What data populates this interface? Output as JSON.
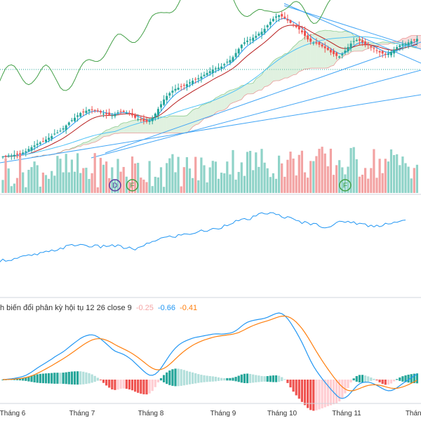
{
  "macd_legend": {
    "label": "h biến đổi phân kỳ hội tụ 12 26 close 9",
    "hist": "-0.25",
    "macd": "-0.66",
    "signal": "-0.41"
  },
  "colors": {
    "up": "#26a69a",
    "down": "#ef5350",
    "up_light": "#8fd3c8",
    "down_light": "#f3a3a3",
    "ema_blue": "#2196f3",
    "ema_red": "#b71c1c",
    "lagging_green": "#43a047",
    "cloud_green": "#a5d6a7",
    "cloud_red": "#ef9a9a",
    "macd_line": "#2196f3",
    "signal_line": "#ff7f0e",
    "indicator_line": "#2196f3",
    "hist_up": "#26a69a",
    "hist_down": "#ef5350",
    "hist_up_light": "#b2dfdb",
    "hist_down_light": "#ffcdd2",
    "marker_purple": "#5c3fa0",
    "marker_green": "#43a047"
  },
  "x_axis": {
    "labels": [
      "Tháng 6",
      "Tháng 7",
      "Tháng 8",
      "Tháng 9",
      "Tháng 10",
      "Tháng 11",
      "Tháng"
    ]
  },
  "markers": [
    {
      "letter": "D",
      "index": 39,
      "color_key": "marker_purple"
    },
    {
      "letter": "F",
      "index": 45,
      "color_key": "marker_green"
    },
    {
      "letter": "F",
      "index": 119,
      "color_key": "marker_green"
    }
  ],
  "chart_data": {
    "type": "candlestick",
    "n_bars": 145,
    "close": [
      20.0,
      20.1,
      20.2,
      20.2,
      20.3,
      20.4,
      20.5,
      20.7,
      20.9,
      21.3,
      21.6,
      21.9,
      22.2,
      22.4,
      22.6,
      22.9,
      23.2,
      23.5,
      23.9,
      24.1,
      24.4,
      24.8,
      25.3,
      25.8,
      26.2,
      26.6,
      27.0,
      27.4,
      27.6,
      27.8,
      28.0,
      28.0,
      27.9,
      27.7,
      27.5,
      27.3,
      27.2,
      27.1,
      27.0,
      27.2,
      27.5,
      27.7,
      27.6,
      27.4,
      27.2,
      27.0,
      26.6,
      26.4,
      26.2,
      26.0,
      25.9,
      26.1,
      26.6,
      27.3,
      28.1,
      28.9,
      29.7,
      30.3,
      30.8,
      31.2,
      31.5,
      31.7,
      31.9,
      32.1,
      32.3,
      32.6,
      32.9,
      33.1,
      33.3,
      33.6,
      33.9,
      34.2,
      34.5,
      34.8,
      35.0,
      35.1,
      35.3,
      35.7,
      36.1,
      36.4,
      36.9,
      37.6,
      38.3,
      39.0,
      39.4,
      39.7,
      39.9,
      40.2,
      40.5,
      40.9,
      41.2,
      41.7,
      42.3,
      42.9,
      43.4,
      43.8,
      44.0,
      43.8,
      43.5,
      43.1,
      42.7,
      42.3,
      42.0,
      41.6,
      41.1,
      40.5,
      39.9,
      39.5,
      39.3,
      39.2,
      39.0,
      38.7,
      38.4,
      38.1,
      37.7,
      37.4,
      37.1,
      37.0,
      37.4,
      38.0,
      38.6,
      39.2,
      39.6,
      39.8,
      39.7,
      39.4,
      39.1,
      38.9,
      38.6,
      38.3,
      38.0,
      37.7,
      37.5,
      37.4,
      37.5,
      37.8,
      38.2,
      38.6,
      38.9,
      39.1,
      39.2,
      39.4,
      39.6,
      39.8,
      40.0
    ],
    "volume_bars": 145,
    "macd_final": -0.66,
    "signal_final": -0.41,
    "histogram_final": -0.25,
    "panes": [
      "price",
      "volume",
      "indicator",
      "macd"
    ]
  }
}
